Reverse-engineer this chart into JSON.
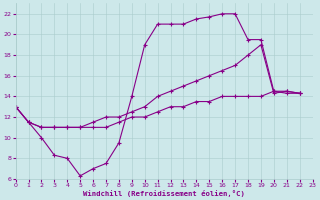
{
  "xlabel": "Windchill (Refroidissement éolien,°C)",
  "bg_color": "#cde8ea",
  "grid_color": "#aacccc",
  "line_color": "#880088",
  "xlim": [
    0,
    23
  ],
  "ylim": [
    6,
    23
  ],
  "yticks": [
    6,
    8,
    10,
    12,
    14,
    16,
    18,
    20,
    22
  ],
  "xticks": [
    0,
    1,
    2,
    3,
    4,
    5,
    6,
    7,
    8,
    9,
    10,
    11,
    12,
    13,
    14,
    15,
    16,
    17,
    18,
    19,
    20,
    21,
    22,
    23
  ],
  "curve1_x": [
    0,
    1,
    2,
    3,
    4,
    5,
    6,
    7,
    8,
    9,
    10,
    11,
    12,
    13,
    14,
    15,
    16,
    17,
    18,
    19,
    20,
    21,
    22
  ],
  "curve1_y": [
    13,
    11.5,
    10,
    8.3,
    8.0,
    6.3,
    7.0,
    7.5,
    9.5,
    14.0,
    19.0,
    21.0,
    21.0,
    21.0,
    21.5,
    21.7,
    22.0,
    22.0,
    19.5,
    19.5,
    14.5,
    14.3,
    14.3
  ],
  "curve2_x": [
    0,
    1,
    2,
    3,
    4,
    5,
    6,
    7,
    8,
    9,
    10,
    11,
    12,
    13,
    14,
    15,
    16,
    17,
    18,
    19,
    20,
    21,
    22
  ],
  "curve2_y": [
    13,
    11.5,
    11.0,
    11.0,
    11.0,
    11.0,
    11.5,
    12.0,
    12.0,
    12.5,
    13.0,
    14.0,
    14.5,
    15.0,
    15.5,
    16.0,
    16.5,
    17.0,
    18.0,
    19.0,
    14.3,
    14.5,
    14.3
  ],
  "curve3_x": [
    0,
    1,
    2,
    3,
    4,
    5,
    6,
    7,
    8,
    9,
    10,
    11,
    12,
    13,
    14,
    15,
    16,
    17,
    18,
    19,
    20,
    21,
    22
  ],
  "curve3_y": [
    13,
    11.5,
    11.0,
    11.0,
    11.0,
    11.0,
    11.0,
    11.0,
    11.5,
    12.0,
    12.0,
    12.5,
    13.0,
    13.0,
    13.5,
    13.5,
    14.0,
    14.0,
    14.0,
    14.0,
    14.5,
    14.5,
    14.3
  ]
}
